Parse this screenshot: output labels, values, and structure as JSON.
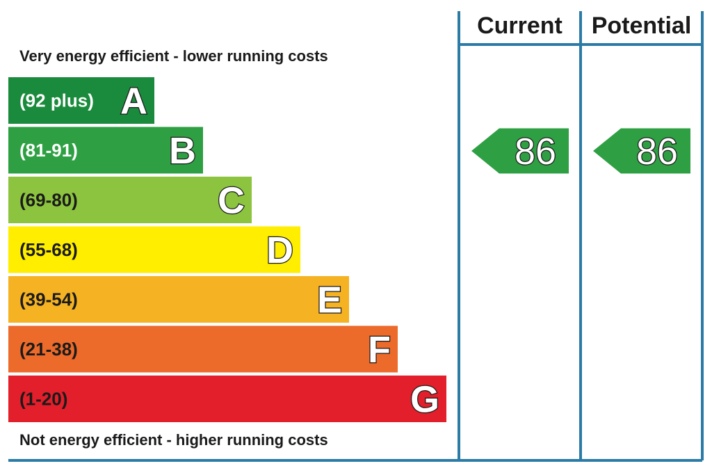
{
  "chart_data": {
    "type": "bar",
    "top_caption": "Very energy efficient - lower running costs",
    "bottom_caption": "Not energy efficient - higher running costs",
    "columns": [
      "Current",
      "Potential"
    ],
    "bands": [
      {
        "letter": "A",
        "range": "(92 plus)",
        "color": "#1a8a3c",
        "text_color": "#ffffff"
      },
      {
        "letter": "B",
        "range": "(81-91)",
        "color": "#2ea043",
        "text_color": "#ffffff"
      },
      {
        "letter": "C",
        "range": "(69-80)",
        "color": "#8cc43f",
        "text_color": "#1a1a1a"
      },
      {
        "letter": "D",
        "range": "(55-68)",
        "color": "#ffee00",
        "text_color": "#1a1a1a"
      },
      {
        "letter": "E",
        "range": "(39-54)",
        "color": "#f5b223",
        "text_color": "#1a1a1a"
      },
      {
        "letter": "F",
        "range": "(21-38)",
        "color": "#ec6a2a",
        "text_color": "#1a1a1a"
      },
      {
        "letter": "G",
        "range": "(1-20)",
        "color": "#e21f2a",
        "text_color": "#1a1a1a"
      }
    ],
    "ratings": [
      {
        "column": "Current",
        "value": 86,
        "band": "B",
        "color": "#2ea043"
      },
      {
        "column": "Potential",
        "value": 86,
        "band": "B",
        "color": "#2ea043"
      }
    ]
  },
  "colors": {
    "frame": "#2b7ba6",
    "text": "#1a1a1a"
  }
}
